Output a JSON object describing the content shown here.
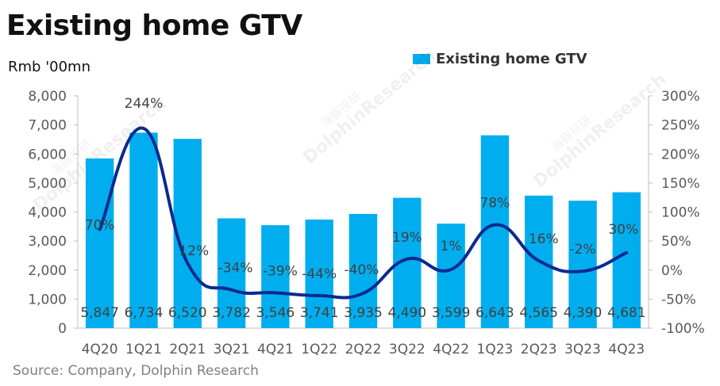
{
  "title": "Existing home GTV",
  "unit_label": "Rmb '00mn",
  "source": "Source: Company, Dolphin Research",
  "watermark": "海豚投研 DolphinResearch",
  "colors": {
    "bar": "#00AEEF",
    "line": "#0B2A8F",
    "axis_text": "#595959"
  },
  "chart_data": {
    "type": "bar",
    "title": "Existing home GTV",
    "categories": [
      "4Q20",
      "1Q21",
      "2Q21",
      "3Q21",
      "4Q21",
      "1Q22",
      "2Q22",
      "3Q22",
      "4Q22",
      "1Q23",
      "2Q23",
      "3Q23",
      "4Q23"
    ],
    "series": [
      {
        "name": "Existing home GTV",
        "type": "bar",
        "axis": "left",
        "values": [
          5847,
          6734,
          6520,
          3782,
          3546,
          3741,
          3935,
          4490,
          3599,
          6643,
          4565,
          4390,
          4681
        ],
        "labels": [
          "5,847",
          "6,734",
          "6,520",
          "3,782",
          "3,546",
          "3,741",
          "3,935",
          "4,490",
          "3,599",
          "6,643",
          "4,565",
          "4,390",
          "4,681"
        ]
      },
      {
        "name": "",
        "type": "line",
        "axis": "right",
        "values": [
          70,
          244,
          12,
          -34,
          -39,
          -44,
          -40,
          19,
          1,
          78,
          16,
          -2,
          30
        ],
        "labels": [
          "70%",
          "244%",
          "12%",
          "-34%",
          "-39%",
          "-44%",
          "-40%",
          "19%",
          "1%",
          "78%",
          "16%",
          "-2%",
          "30%"
        ]
      }
    ],
    "y_left": {
      "min": 0,
      "max": 8000,
      "ticks": [
        "0",
        "1,000",
        "2,000",
        "3,000",
        "4,000",
        "5,000",
        "6,000",
        "7,000",
        "8,000"
      ]
    },
    "y_right": {
      "min": -100,
      "max": 300,
      "ticks": [
        "-100%",
        "-50%",
        "0%",
        "50%",
        "100%",
        "150%",
        "200%",
        "250%",
        "300%"
      ]
    },
    "legend": {
      "position": "top-right",
      "entries": [
        "Existing home GTV"
      ]
    },
    "grid": false
  }
}
